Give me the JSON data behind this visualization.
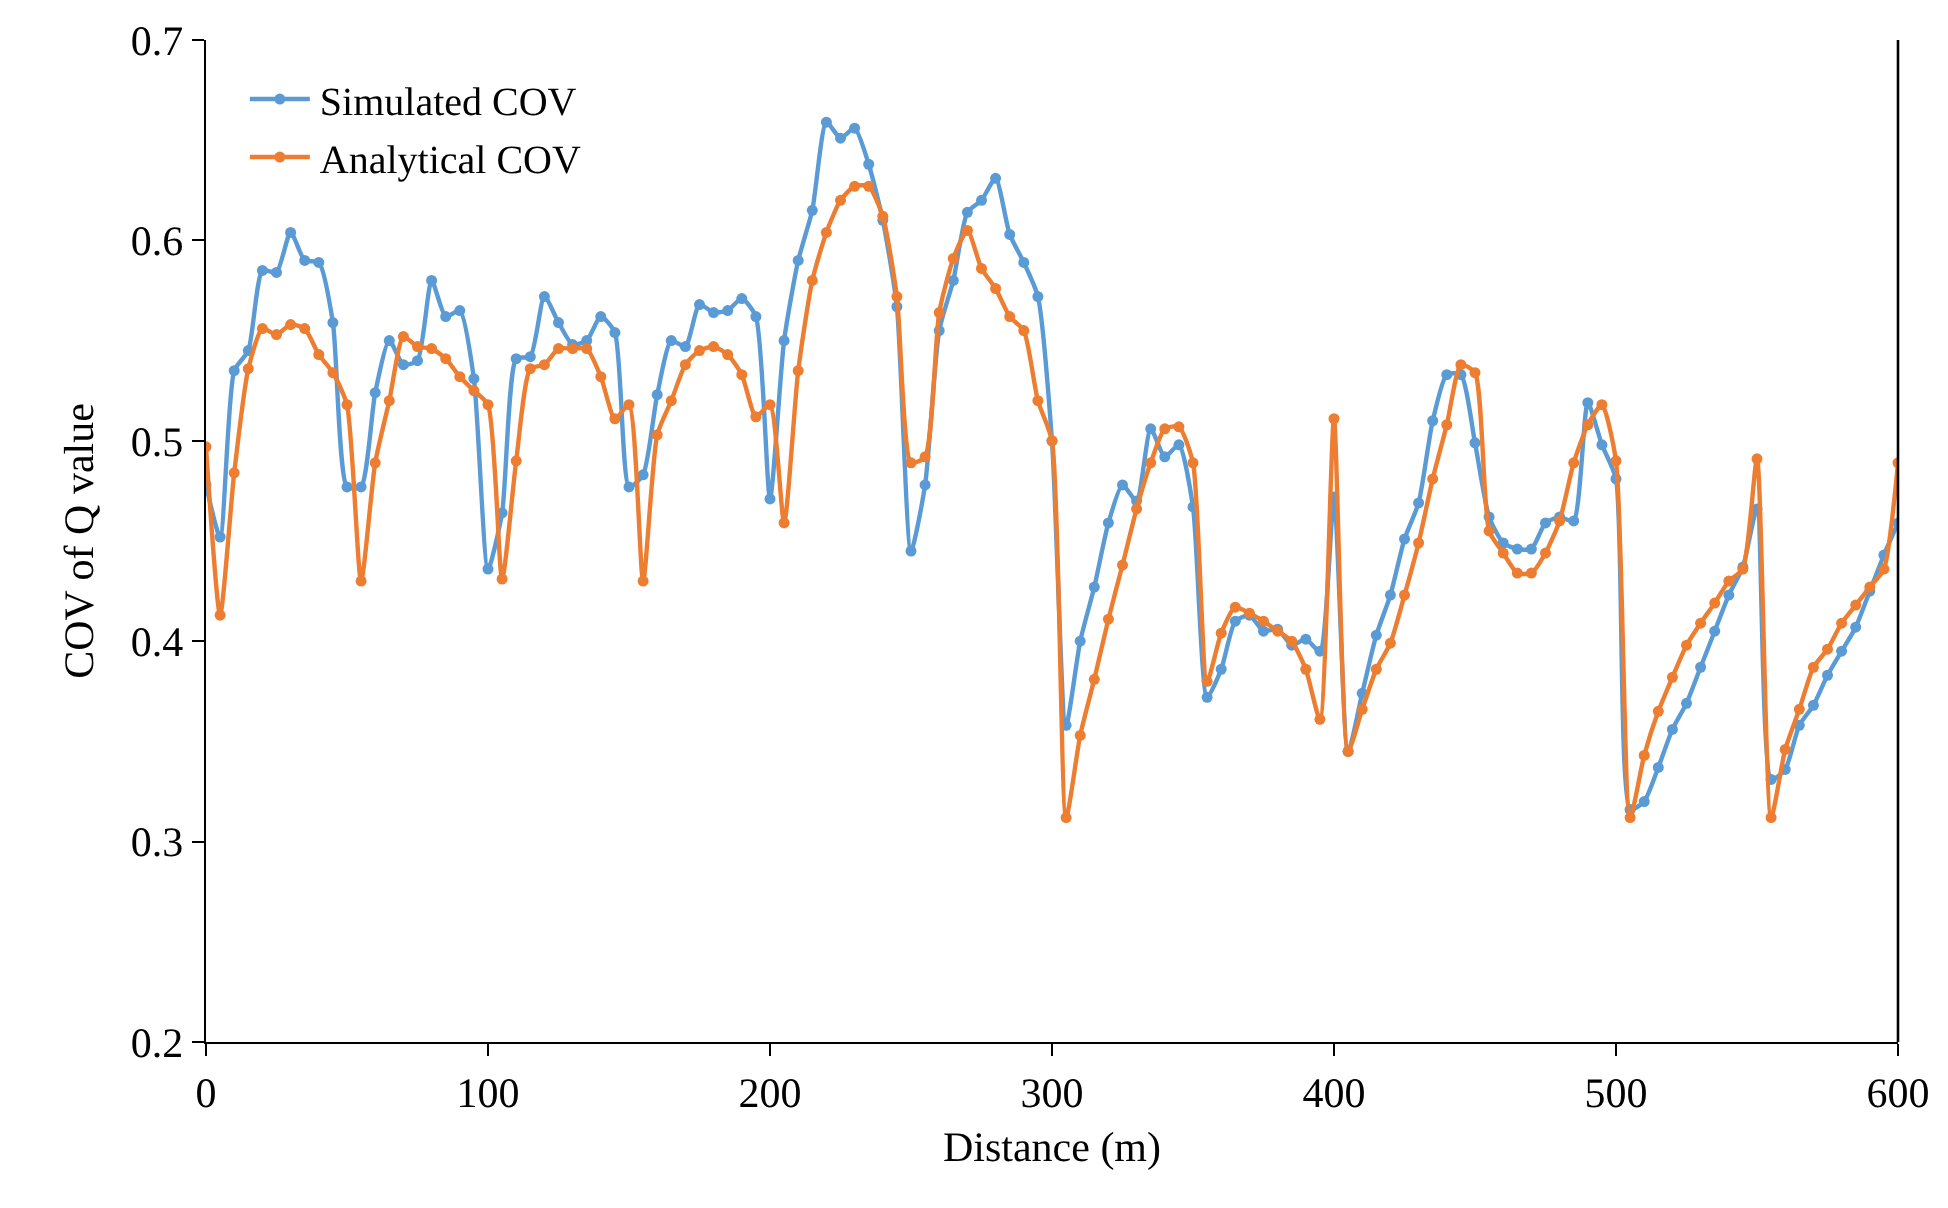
{
  "chart_data": {
    "type": "line",
    "xlabel": "Distance (m)",
    "ylabel": "COV of Q value",
    "x": [
      0,
      5,
      10,
      15,
      20,
      25,
      30,
      35,
      40,
      45,
      50,
      55,
      60,
      65,
      70,
      75,
      80,
      85,
      90,
      95,
      100,
      105,
      110,
      115,
      120,
      125,
      130,
      135,
      140,
      145,
      150,
      155,
      160,
      165,
      170,
      175,
      180,
      185,
      190,
      195,
      200,
      205,
      210,
      215,
      220,
      225,
      230,
      235,
      240,
      245,
      250,
      255,
      260,
      265,
      270,
      275,
      280,
      285,
      290,
      295,
      300,
      305,
      310,
      315,
      320,
      325,
      330,
      335,
      340,
      345,
      350,
      355,
      360,
      365,
      370,
      375,
      380,
      385,
      390,
      395,
      400,
      405,
      410,
      415,
      420,
      425,
      430,
      435,
      440,
      445,
      450,
      455,
      460,
      465,
      470,
      475,
      480,
      485,
      490,
      495,
      500,
      505,
      510,
      515,
      520,
      525,
      530,
      535,
      540,
      545,
      550,
      555,
      560,
      565,
      570,
      575,
      580,
      585,
      590,
      595,
      600
    ],
    "series": [
      {
        "name": "Simulated COV",
        "color": "#5b9bd5",
        "values": [
          0.478,
          0.452,
          0.535,
          0.545,
          0.585,
          0.584,
          0.604,
          0.59,
          0.589,
          0.559,
          0.477,
          0.477,
          0.524,
          0.55,
          0.538,
          0.54,
          0.58,
          0.562,
          0.565,
          0.531,
          0.436,
          0.464,
          0.541,
          0.542,
          0.572,
          0.559,
          0.548,
          0.55,
          0.562,
          0.554,
          0.477,
          0.483,
          0.523,
          0.55,
          0.547,
          0.568,
          0.564,
          0.565,
          0.571,
          0.562,
          0.471,
          0.55,
          0.59,
          0.615,
          0.659,
          0.651,
          0.656,
          0.638,
          0.61,
          0.567,
          0.445,
          0.478,
          0.555,
          0.58,
          0.614,
          0.62,
          0.631,
          0.603,
          0.589,
          0.572,
          0.5,
          0.358,
          0.4,
          0.427,
          0.459,
          0.478,
          0.47,
          0.506,
          0.492,
          0.498,
          0.467,
          0.372,
          0.386,
          0.41,
          0.413,
          0.405,
          0.406,
          0.398,
          0.401,
          0.395,
          0.472,
          0.345,
          0.374,
          0.403,
          0.423,
          0.451,
          0.469,
          0.51,
          0.533,
          0.533,
          0.499,
          0.462,
          0.449,
          0.446,
          0.446,
          0.459,
          0.462,
          0.46,
          0.519,
          0.498,
          0.481,
          0.316,
          0.32,
          0.337,
          0.356,
          0.369,
          0.387,
          0.405,
          0.423,
          0.437,
          0.466,
          0.331,
          0.336,
          0.358,
          0.368,
          0.383,
          0.395,
          0.407,
          0.425,
          0.443,
          0.459
        ]
      },
      {
        "name": "Analytical COV",
        "color": "#ed7d31",
        "values": [
          0.497,
          0.413,
          0.484,
          0.536,
          0.556,
          0.553,
          0.558,
          0.556,
          0.543,
          0.534,
          0.518,
          0.43,
          0.489,
          0.52,
          0.552,
          0.547,
          0.546,
          0.541,
          0.532,
          0.525,
          0.518,
          0.431,
          0.49,
          0.536,
          0.538,
          0.546,
          0.546,
          0.546,
          0.532,
          0.511,
          0.518,
          0.43,
          0.503,
          0.52,
          0.538,
          0.545,
          0.547,
          0.543,
          0.533,
          0.512,
          0.518,
          0.459,
          0.535,
          0.58,
          0.604,
          0.62,
          0.627,
          0.627,
          0.612,
          0.572,
          0.489,
          0.492,
          0.564,
          0.591,
          0.605,
          0.586,
          0.576,
          0.562,
          0.555,
          0.52,
          0.5,
          0.312,
          0.353,
          0.381,
          0.411,
          0.438,
          0.466,
          0.489,
          0.506,
          0.507,
          0.489,
          0.38,
          0.404,
          0.417,
          0.414,
          0.41,
          0.405,
          0.4,
          0.386,
          0.361,
          0.511,
          0.345,
          0.366,
          0.386,
          0.399,
          0.423,
          0.449,
          0.481,
          0.508,
          0.538,
          0.534,
          0.455,
          0.444,
          0.434,
          0.434,
          0.444,
          0.46,
          0.489,
          0.508,
          0.518,
          0.49,
          0.312,
          0.343,
          0.365,
          0.382,
          0.398,
          0.409,
          0.419,
          0.43,
          0.436,
          0.491,
          0.312,
          0.346,
          0.366,
          0.387,
          0.396,
          0.409,
          0.418,
          0.427,
          0.436,
          0.489
        ]
      }
    ],
    "xlim": [
      0,
      600
    ],
    "xticks": [
      0,
      100,
      200,
      300,
      400,
      500,
      600
    ],
    "ylim": [
      0.2,
      0.7
    ],
    "yticks": [
      {
        "value": 0.2,
        "label": "0.2"
      },
      {
        "value": 0.3,
        "label": "0.3"
      },
      {
        "value": 0.4,
        "label": "0.4"
      },
      {
        "value": 0.5,
        "label": "0.5"
      },
      {
        "value": 0.6,
        "label": "0.6"
      },
      {
        "value": 0.7,
        "label": "0.7"
      }
    ],
    "grid": false,
    "legend": "top left",
    "marker": "circle",
    "line_style": "solid"
  }
}
